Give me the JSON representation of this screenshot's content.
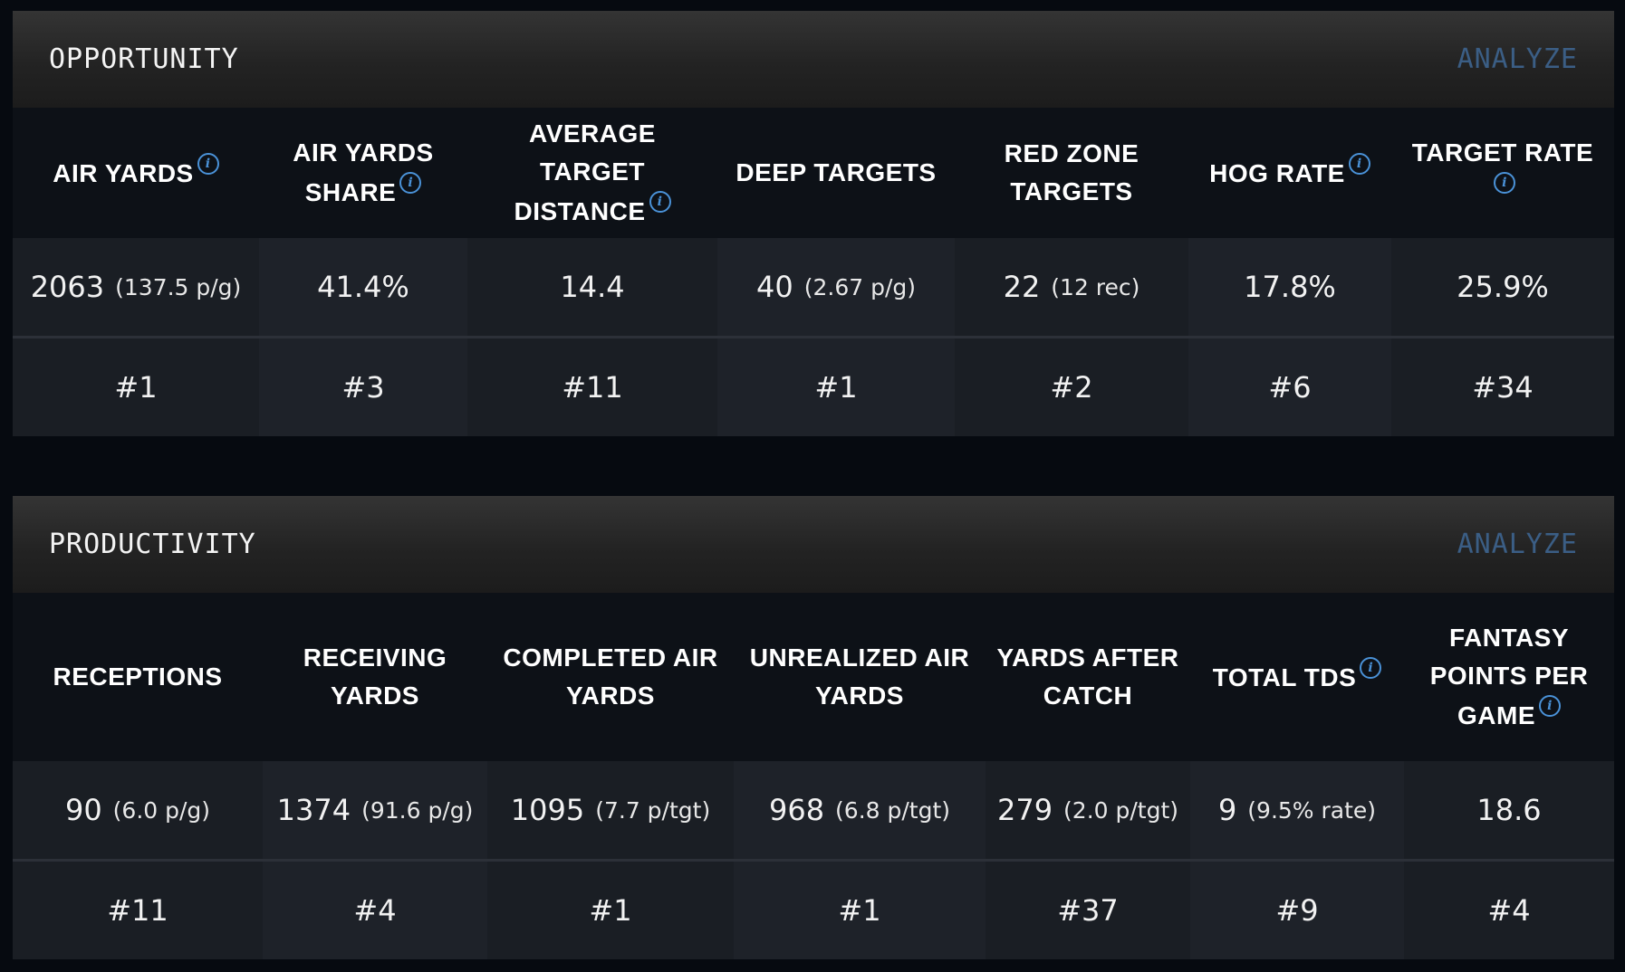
{
  "opportunity": {
    "title": "OPPORTUNITY",
    "analyze_label": "ANALYZE",
    "columns": [
      {
        "label": "AIR YARDS",
        "info": true,
        "value": "2063",
        "sub": "(137.5 p/g)",
        "rank": "#1"
      },
      {
        "label": "AIR YARDS SHARE",
        "info": true,
        "value": "41.4%",
        "sub": "",
        "rank": "#3"
      },
      {
        "label": "AVERAGE TARGET DISTANCE",
        "info": true,
        "value": "14.4",
        "sub": "",
        "rank": "#11"
      },
      {
        "label": "DEEP TARGETS",
        "info": false,
        "value": "40",
        "sub": "(2.67 p/g)",
        "rank": "#1"
      },
      {
        "label": "RED ZONE TARGETS",
        "info": false,
        "value": "22",
        "sub": "(12 rec)",
        "rank": "#2"
      },
      {
        "label": "HOG RATE",
        "info": true,
        "value": "17.8%",
        "sub": "",
        "rank": "#6"
      },
      {
        "label": "TARGET RATE",
        "info": true,
        "value": "25.9%",
        "sub": "",
        "rank": "#34"
      }
    ]
  },
  "productivity": {
    "title": "PRODUCTIVITY",
    "analyze_label": "ANALYZE",
    "columns": [
      {
        "label": "RECEPTIONS",
        "info": false,
        "value": "90",
        "sub": "(6.0 p/g)",
        "rank": "#11"
      },
      {
        "label": "RECEIVING YARDS",
        "info": false,
        "value": "1374",
        "sub": "(91.6 p/g)",
        "rank": "#4"
      },
      {
        "label": "COMPLETED AIR YARDS",
        "info": false,
        "value": "1095",
        "sub": "(7.7 p/tgt)",
        "rank": "#1"
      },
      {
        "label": "UNREALIZED AIR YARDS",
        "info": false,
        "value": "968",
        "sub": "(6.8 p/tgt)",
        "rank": "#1"
      },
      {
        "label": "YARDS AFTER CATCH",
        "info": false,
        "value": "279",
        "sub": "(2.0 p/tgt)",
        "rank": "#37"
      },
      {
        "label": "TOTAL TDS",
        "info": true,
        "value": "9",
        "sub": "(9.5% rate)",
        "rank": "#9"
      },
      {
        "label": "FANTASY POINTS PER GAME",
        "info": true,
        "value": "18.6",
        "sub": "",
        "rank": "#4"
      }
    ]
  },
  "icons": {
    "info": "info-icon",
    "info_glyph": "i"
  }
}
